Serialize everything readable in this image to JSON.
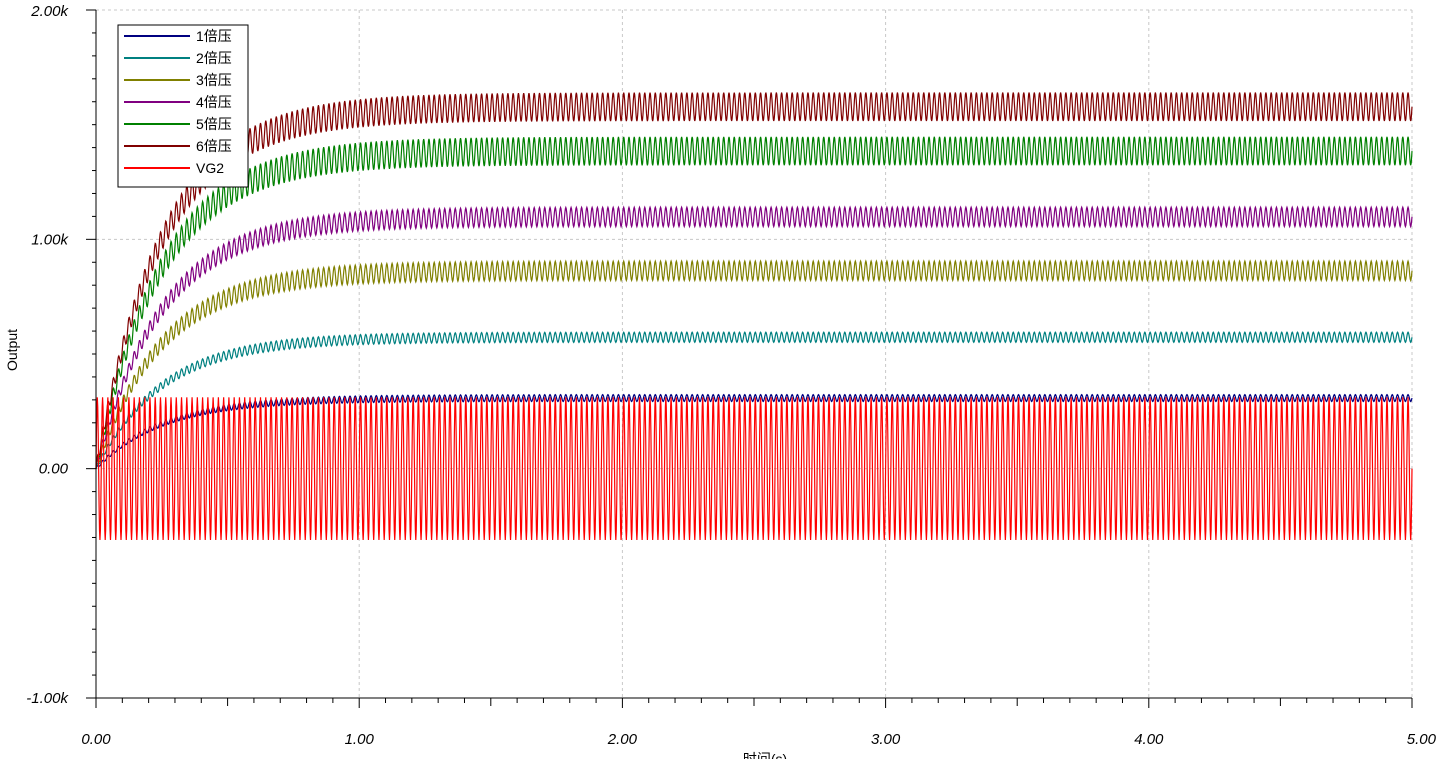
{
  "chart_data": {
    "type": "line",
    "title": "",
    "xlabel": "时间(s)",
    "ylabel": "Output",
    "xlim": [
      0,
      5
    ],
    "ylim": [
      -1000,
      2000
    ],
    "x_ticks": [
      0,
      1,
      2,
      3,
      4,
      5
    ],
    "x_tick_labels": [
      "0.00",
      "1.00",
      "2.00",
      "3.00",
      "4.00",
      "5.00"
    ],
    "y_ticks": [
      -1000,
      0,
      1000,
      2000
    ],
    "y_tick_labels": [
      "-1.00k",
      "0.00",
      "1.00k",
      "2.00k"
    ],
    "grid": true,
    "legend_position": "top-left",
    "signal_frequency_hz": 50,
    "series": [
      {
        "name": "1倍压",
        "color": "#000080",
        "kind": "charge",
        "steady_center": 308,
        "ripple_amplitude": 15,
        "time_constant_s": 0.25
      },
      {
        "name": "2倍压",
        "color": "#008080",
        "kind": "charge",
        "steady_center": 573,
        "ripple_amplitude": 22,
        "time_constant_s": 0.25
      },
      {
        "name": "3倍压",
        "color": "#808000",
        "kind": "charge",
        "steady_center": 863,
        "ripple_amplitude": 42,
        "time_constant_s": 0.25
      },
      {
        "name": "4倍压",
        "color": "#800080",
        "kind": "charge",
        "steady_center": 1098,
        "ripple_amplitude": 42,
        "time_constant_s": 0.25
      },
      {
        "name": "5倍压",
        "color": "#008000",
        "kind": "charge",
        "steady_center": 1385,
        "ripple_amplitude": 62,
        "time_constant_s": 0.25
      },
      {
        "name": "6倍压",
        "color": "#800000",
        "kind": "charge",
        "steady_center": 1578,
        "ripple_amplitude": 62,
        "time_constant_s": 0.25
      },
      {
        "name": "VG2",
        "color": "#ff0000",
        "kind": "sine",
        "steady_center": 0,
        "ripple_amplitude": 311,
        "time_constant_s": 0
      }
    ]
  }
}
